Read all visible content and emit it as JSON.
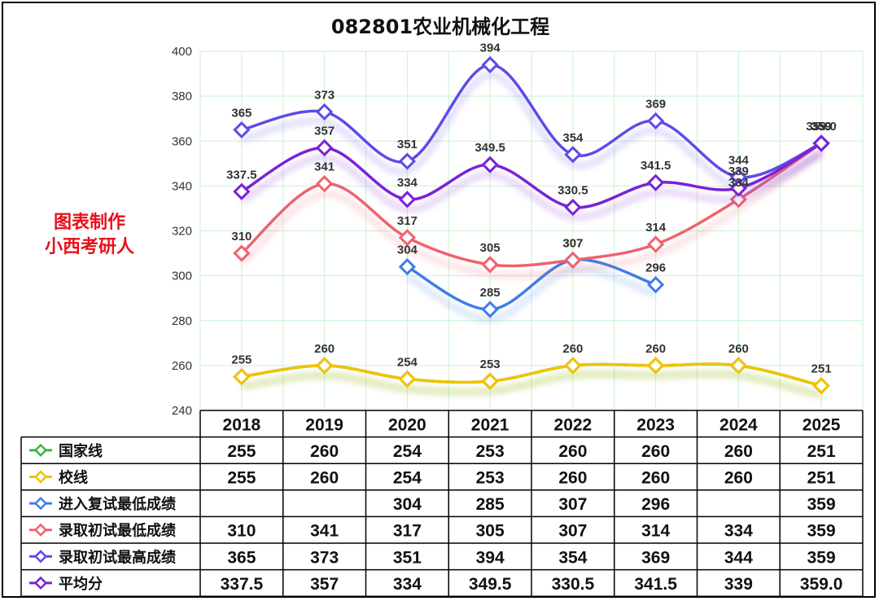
{
  "chart_data": {
    "type": "line",
    "title": "082801农业机械化工程",
    "categories": [
      "2018",
      "2019",
      "2020",
      "2021",
      "2022",
      "2023",
      "2024",
      "2025"
    ],
    "ylim": [
      240,
      400
    ],
    "yticks": [
      240,
      260,
      280,
      300,
      320,
      340,
      360,
      380,
      400
    ],
    "grid": true,
    "legend": "table-bottom",
    "series": [
      {
        "name": "国家线",
        "color": "#3cb44b",
        "values": [
          255,
          260,
          254,
          253,
          260,
          260,
          260,
          251
        ],
        "labels": [
          "255",
          "260",
          "254",
          "253",
          "260",
          "260",
          "260",
          "251"
        ]
      },
      {
        "name": "校线",
        "color": "#f2c200",
        "values": [
          255,
          260,
          254,
          253,
          260,
          260,
          260,
          251
        ],
        "labels": [
          "255",
          "260",
          "254",
          "253",
          "260",
          "260",
          "260",
          "251"
        ]
      },
      {
        "name": "进入复试最低成绩",
        "color": "#3d7ee8",
        "values": [
          null,
          null,
          304,
          285,
          307,
          296,
          null,
          359
        ],
        "labels": [
          "",
          "",
          "304",
          "285",
          "307",
          "296",
          "",
          "359"
        ]
      },
      {
        "name": "录取初试最低成绩",
        "color": "#f0626e",
        "values": [
          310,
          341,
          317,
          305,
          307,
          314,
          334,
          359
        ],
        "labels": [
          "310",
          "341",
          "317",
          "305",
          "307",
          "314",
          "334",
          "359"
        ]
      },
      {
        "name": "录取初试最高成绩",
        "color": "#5d4ce8",
        "values": [
          365,
          373,
          351,
          394,
          354,
          369,
          344,
          359
        ],
        "labels": [
          "365",
          "373",
          "351",
          "394",
          "354",
          "369",
          "344",
          "359"
        ]
      },
      {
        "name": "平均分",
        "color": "#7a22d9",
        "values": [
          337.5,
          357,
          334,
          349.5,
          330.5,
          341.5,
          339,
          359.0
        ],
        "labels": [
          "337.5",
          "357",
          "334",
          "349.5",
          "330.5",
          "341.5",
          "339",
          "359.0"
        ]
      }
    ]
  },
  "watermark": {
    "line1": "图表制作",
    "line2": "小西考研人"
  },
  "colors": {
    "grid": "#c9f2cf",
    "watermark": "#e8101a",
    "border": "#000000"
  }
}
